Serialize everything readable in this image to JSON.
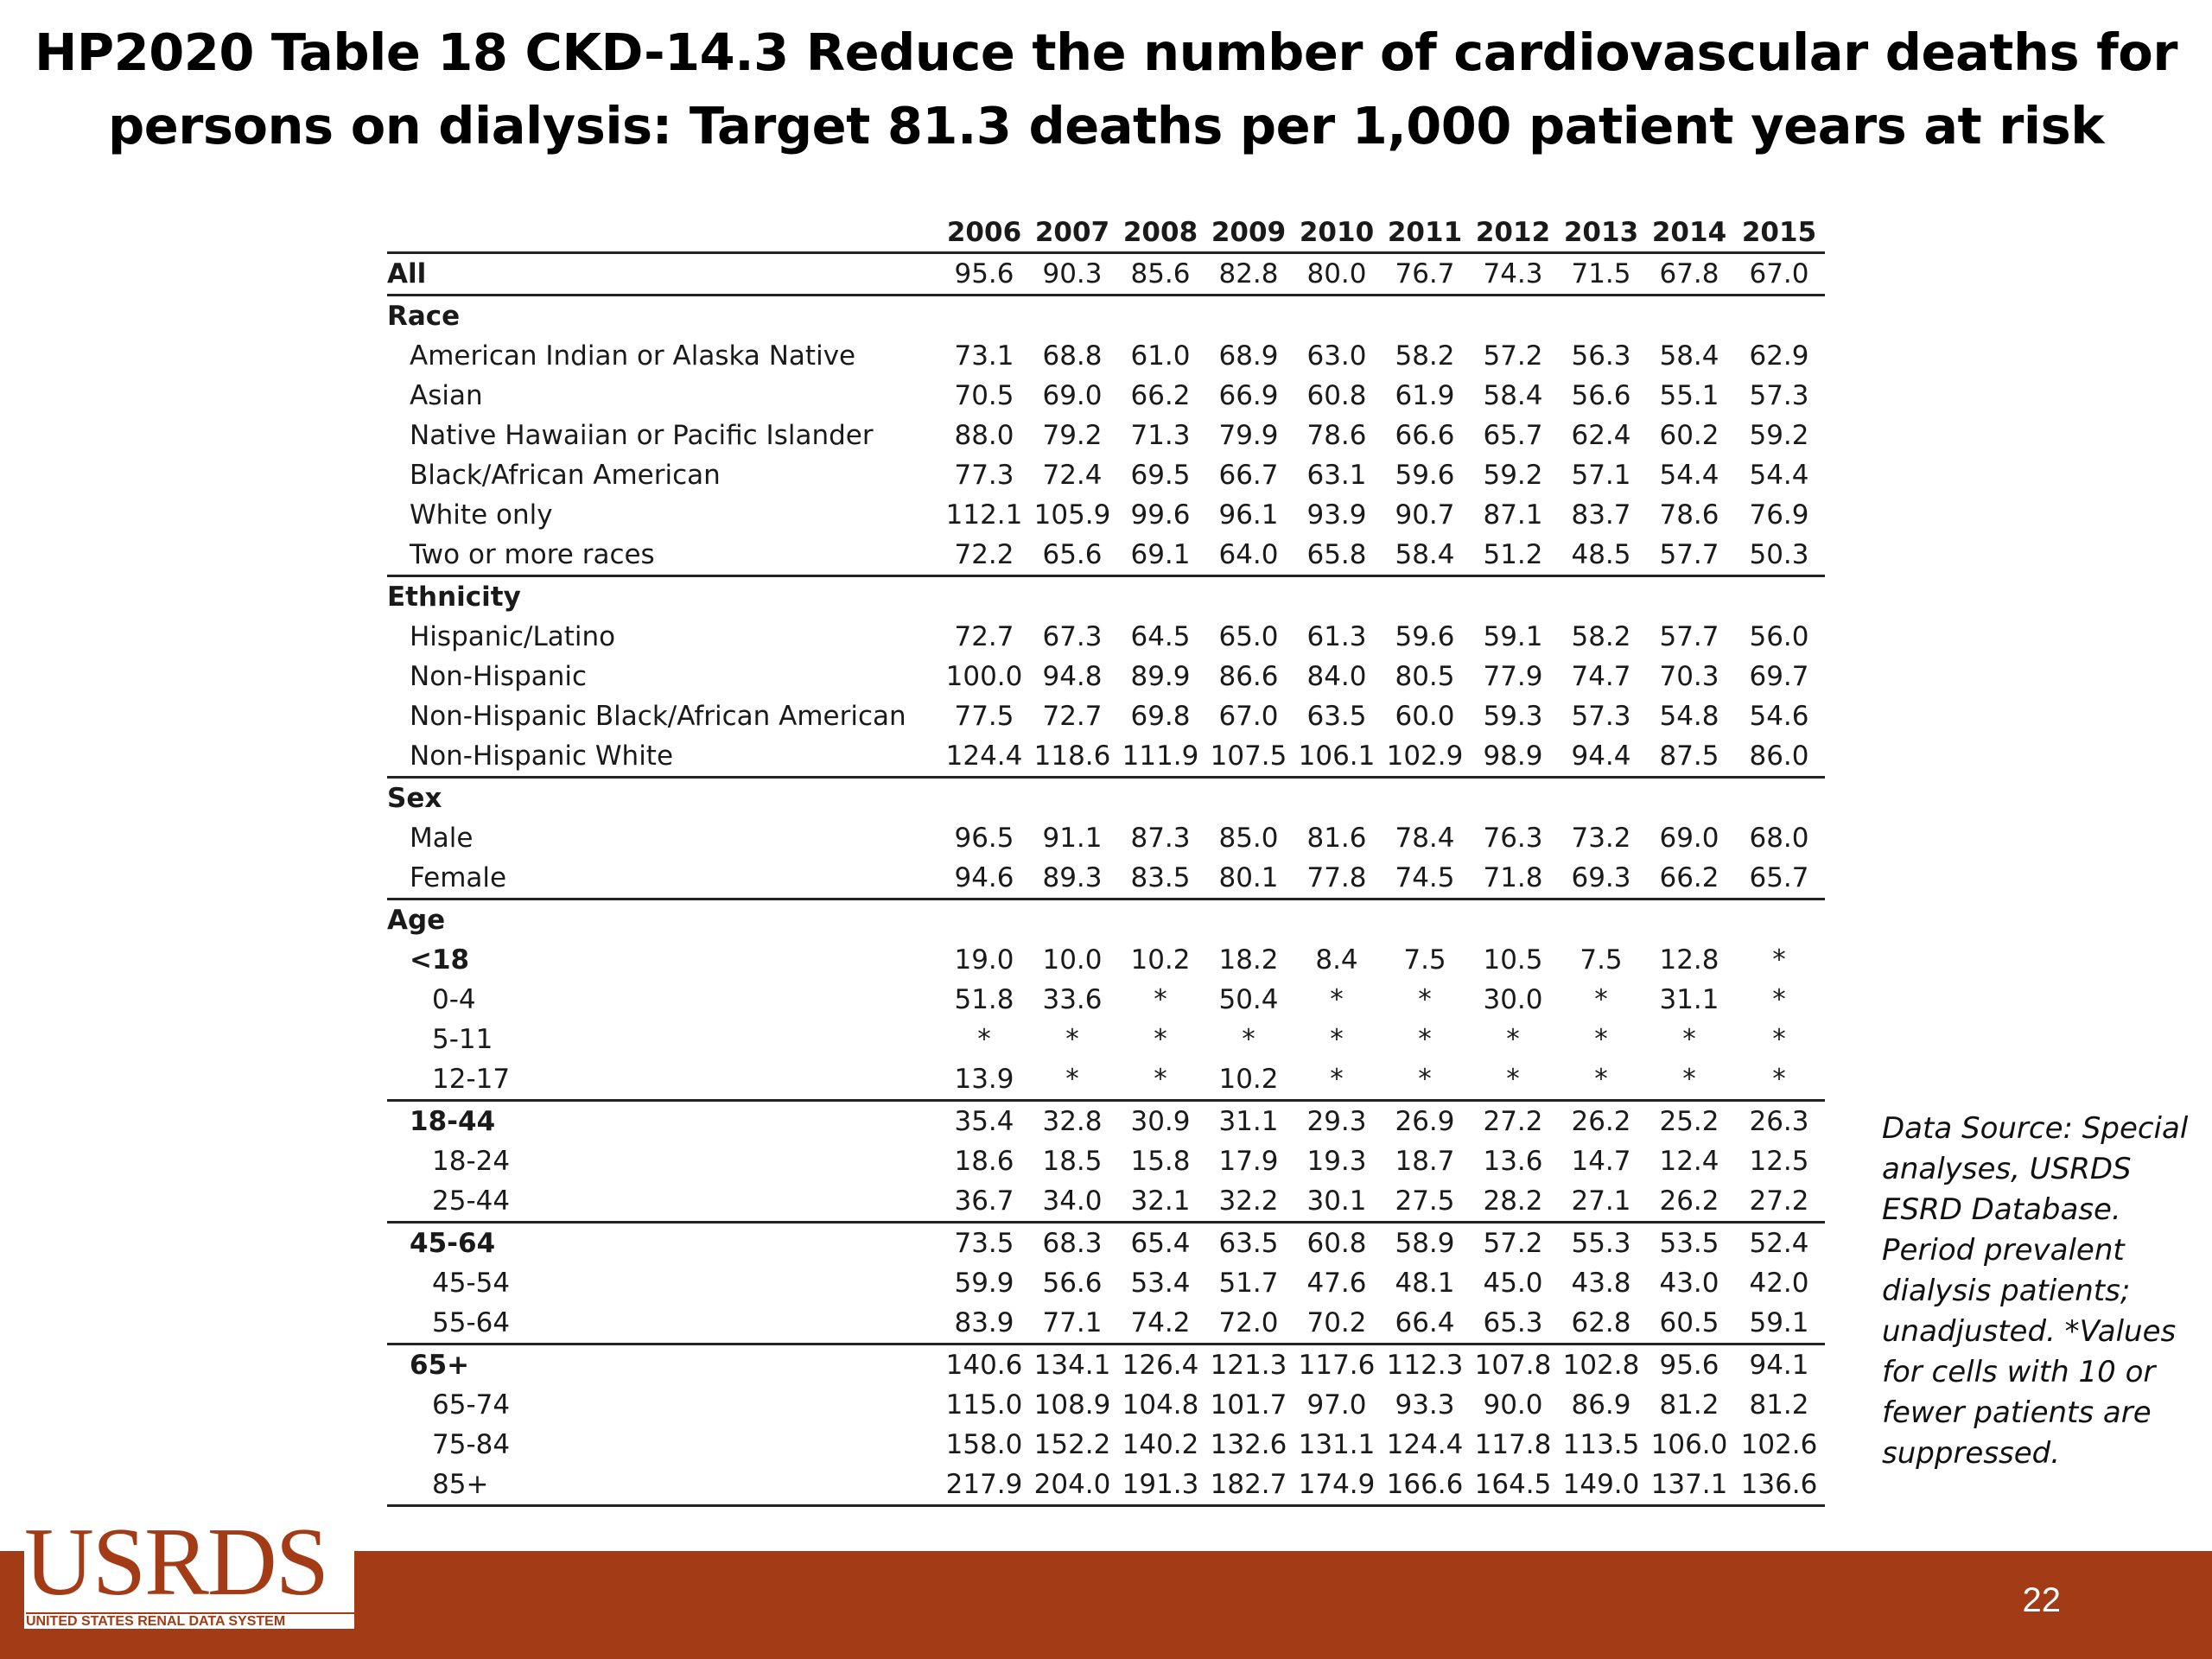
{
  "title": "HP2020 Table 18 CKD-14.3 Reduce the number of cardiovascular deaths for persons on dialysis: Target 81.3 deaths per 1,000 patient years at risk",
  "table": {
    "header_label": "",
    "years": [
      "2006",
      "2007",
      "2008",
      "2009",
      "2010",
      "2011",
      "2012",
      "2013",
      "2014",
      "2015"
    ],
    "rows": [
      {
        "label": "All",
        "level": "level-0",
        "rule": true,
        "values": [
          "95.6",
          "90.3",
          "85.6",
          "82.8",
          "80.0",
          "76.7",
          "74.3",
          "71.5",
          "67.8",
          "67.0"
        ]
      },
      {
        "label": "Race",
        "level": "level-0",
        "rule": false,
        "values": []
      },
      {
        "label": "American Indian or Alaska Native",
        "level": "level-1",
        "rule": false,
        "values": [
          "73.1",
          "68.8",
          "61.0",
          "68.9",
          "63.0",
          "58.2",
          "57.2",
          "56.3",
          "58.4",
          "62.9"
        ]
      },
      {
        "label": "Asian",
        "level": "level-1",
        "rule": false,
        "values": [
          "70.5",
          "69.0",
          "66.2",
          "66.9",
          "60.8",
          "61.9",
          "58.4",
          "56.6",
          "55.1",
          "57.3"
        ]
      },
      {
        "label": "Native Hawaiian or Pacific Islander",
        "level": "level-1",
        "rule": false,
        "values": [
          "88.0",
          "79.2",
          "71.3",
          "79.9",
          "78.6",
          "66.6",
          "65.7",
          "62.4",
          "60.2",
          "59.2"
        ]
      },
      {
        "label": "Black/African American",
        "level": "level-1",
        "rule": false,
        "values": [
          "77.3",
          "72.4",
          "69.5",
          "66.7",
          "63.1",
          "59.6",
          "59.2",
          "57.1",
          "54.4",
          "54.4"
        ]
      },
      {
        "label": "White only",
        "level": "level-1",
        "rule": false,
        "values": [
          "112.1",
          "105.9",
          "99.6",
          "96.1",
          "93.9",
          "90.7",
          "87.1",
          "83.7",
          "78.6",
          "76.9"
        ]
      },
      {
        "label": "Two or more races",
        "level": "level-1",
        "rule": true,
        "values": [
          "72.2",
          "65.6",
          "69.1",
          "64.0",
          "65.8",
          "58.4",
          "51.2",
          "48.5",
          "57.7",
          "50.3"
        ]
      },
      {
        "label": "Ethnicity",
        "level": "level-0",
        "rule": false,
        "values": []
      },
      {
        "label": "Hispanic/Latino",
        "level": "level-1",
        "rule": false,
        "values": [
          "72.7",
          "67.3",
          "64.5",
          "65.0",
          "61.3",
          "59.6",
          "59.1",
          "58.2",
          "57.7",
          "56.0"
        ]
      },
      {
        "label": "Non-Hispanic",
        "level": "level-1",
        "rule": false,
        "values": [
          "100.0",
          "94.8",
          "89.9",
          "86.6",
          "84.0",
          "80.5",
          "77.9",
          "74.7",
          "70.3",
          "69.7"
        ]
      },
      {
        "label": "Non-Hispanic Black/African American",
        "level": "level-1",
        "rule": false,
        "values": [
          "77.5",
          "72.7",
          "69.8",
          "67.0",
          "63.5",
          "60.0",
          "59.3",
          "57.3",
          "54.8",
          "54.6"
        ]
      },
      {
        "label": "Non-Hispanic White",
        "level": "level-1",
        "rule": true,
        "values": [
          "124.4",
          "118.6",
          "111.9",
          "107.5",
          "106.1",
          "102.9",
          "98.9",
          "94.4",
          "87.5",
          "86.0"
        ]
      },
      {
        "label": "Sex",
        "level": "level-0",
        "rule": false,
        "values": []
      },
      {
        "label": "Male",
        "level": "level-1",
        "rule": false,
        "values": [
          "96.5",
          "91.1",
          "87.3",
          "85.0",
          "81.6",
          "78.4",
          "76.3",
          "73.2",
          "69.0",
          "68.0"
        ]
      },
      {
        "label": "Female",
        "level": "level-1",
        "rule": true,
        "values": [
          "94.6",
          "89.3",
          "83.5",
          "80.1",
          "77.8",
          "74.5",
          "71.8",
          "69.3",
          "66.2",
          "65.7"
        ]
      },
      {
        "label": "Age",
        "level": "level-0",
        "rule": false,
        "values": []
      },
      {
        "label": "<18",
        "level": "level-1b",
        "rule": false,
        "values": [
          "19.0",
          "10.0",
          "10.2",
          "18.2",
          "8.4",
          "7.5",
          "10.5",
          "7.5",
          "12.8",
          "*"
        ]
      },
      {
        "label": "0-4",
        "level": "level-2",
        "rule": false,
        "values": [
          "51.8",
          "33.6",
          "*",
          "50.4",
          "*",
          "*",
          "30.0",
          "*",
          "31.1",
          "*"
        ]
      },
      {
        "label": "5-11",
        "level": "level-2",
        "rule": false,
        "values": [
          "*",
          "*",
          "*",
          "*",
          "*",
          "*",
          "*",
          "*",
          "*",
          "*"
        ]
      },
      {
        "label": "12-17",
        "level": "level-2",
        "rule": true,
        "values": [
          "13.9",
          "*",
          "*",
          "10.2",
          "*",
          "*",
          "*",
          "*",
          "*",
          "*"
        ]
      },
      {
        "label": "18-44",
        "level": "level-1b",
        "rule": false,
        "values": [
          "35.4",
          "32.8",
          "30.9",
          "31.1",
          "29.3",
          "26.9",
          "27.2",
          "26.2",
          "25.2",
          "26.3"
        ]
      },
      {
        "label": "18-24",
        "level": "level-2",
        "rule": false,
        "values": [
          "18.6",
          "18.5",
          "15.8",
          "17.9",
          "19.3",
          "18.7",
          "13.6",
          "14.7",
          "12.4",
          "12.5"
        ]
      },
      {
        "label": "25-44",
        "level": "level-2",
        "rule": true,
        "values": [
          "36.7",
          "34.0",
          "32.1",
          "32.2",
          "30.1",
          "27.5",
          "28.2",
          "27.1",
          "26.2",
          "27.2"
        ]
      },
      {
        "label": "45-64",
        "level": "level-1b",
        "rule": false,
        "values": [
          "73.5",
          "68.3",
          "65.4",
          "63.5",
          "60.8",
          "58.9",
          "57.2",
          "55.3",
          "53.5",
          "52.4"
        ]
      },
      {
        "label": "45-54",
        "level": "level-2",
        "rule": false,
        "values": [
          "59.9",
          "56.6",
          "53.4",
          "51.7",
          "47.6",
          "48.1",
          "45.0",
          "43.8",
          "43.0",
          "42.0"
        ]
      },
      {
        "label": "55-64",
        "level": "level-2",
        "rule": true,
        "values": [
          "83.9",
          "77.1",
          "74.2",
          "72.0",
          "70.2",
          "66.4",
          "65.3",
          "62.8",
          "60.5",
          "59.1"
        ]
      },
      {
        "label": "65+",
        "level": "level-1b",
        "rule": false,
        "values": [
          "140.6",
          "134.1",
          "126.4",
          "121.3",
          "117.6",
          "112.3",
          "107.8",
          "102.8",
          "95.6",
          "94.1"
        ]
      },
      {
        "label": "65-74",
        "level": "level-2",
        "rule": false,
        "values": [
          "115.0",
          "108.9",
          "104.8",
          "101.7",
          "97.0",
          "93.3",
          "90.0",
          "86.9",
          "81.2",
          "81.2"
        ]
      },
      {
        "label": "75-84",
        "level": "level-2",
        "rule": false,
        "values": [
          "158.0",
          "152.2",
          "140.2",
          "132.6",
          "131.1",
          "124.4",
          "117.8",
          "113.5",
          "106.0",
          "102.6"
        ]
      },
      {
        "label": "85+",
        "level": "level-2",
        "rule": true,
        "values": [
          "217.9",
          "204.0",
          "191.3",
          "182.7",
          "174.9",
          "166.6",
          "164.5",
          "149.0",
          "137.1",
          "136.6"
        ]
      }
    ]
  },
  "source_note": "Data Source: Special analyses, USRDS ESRD Database. Period prevalent dialysis patients; unadjusted. *Values for cells with 10 or fewer patients are suppressed.",
  "footer": {
    "logo_text": "USRDS",
    "logo_subtext": "UNITED STATES RENAL DATA SYSTEM",
    "page_number": "22",
    "band_color": "#a33c16"
  }
}
